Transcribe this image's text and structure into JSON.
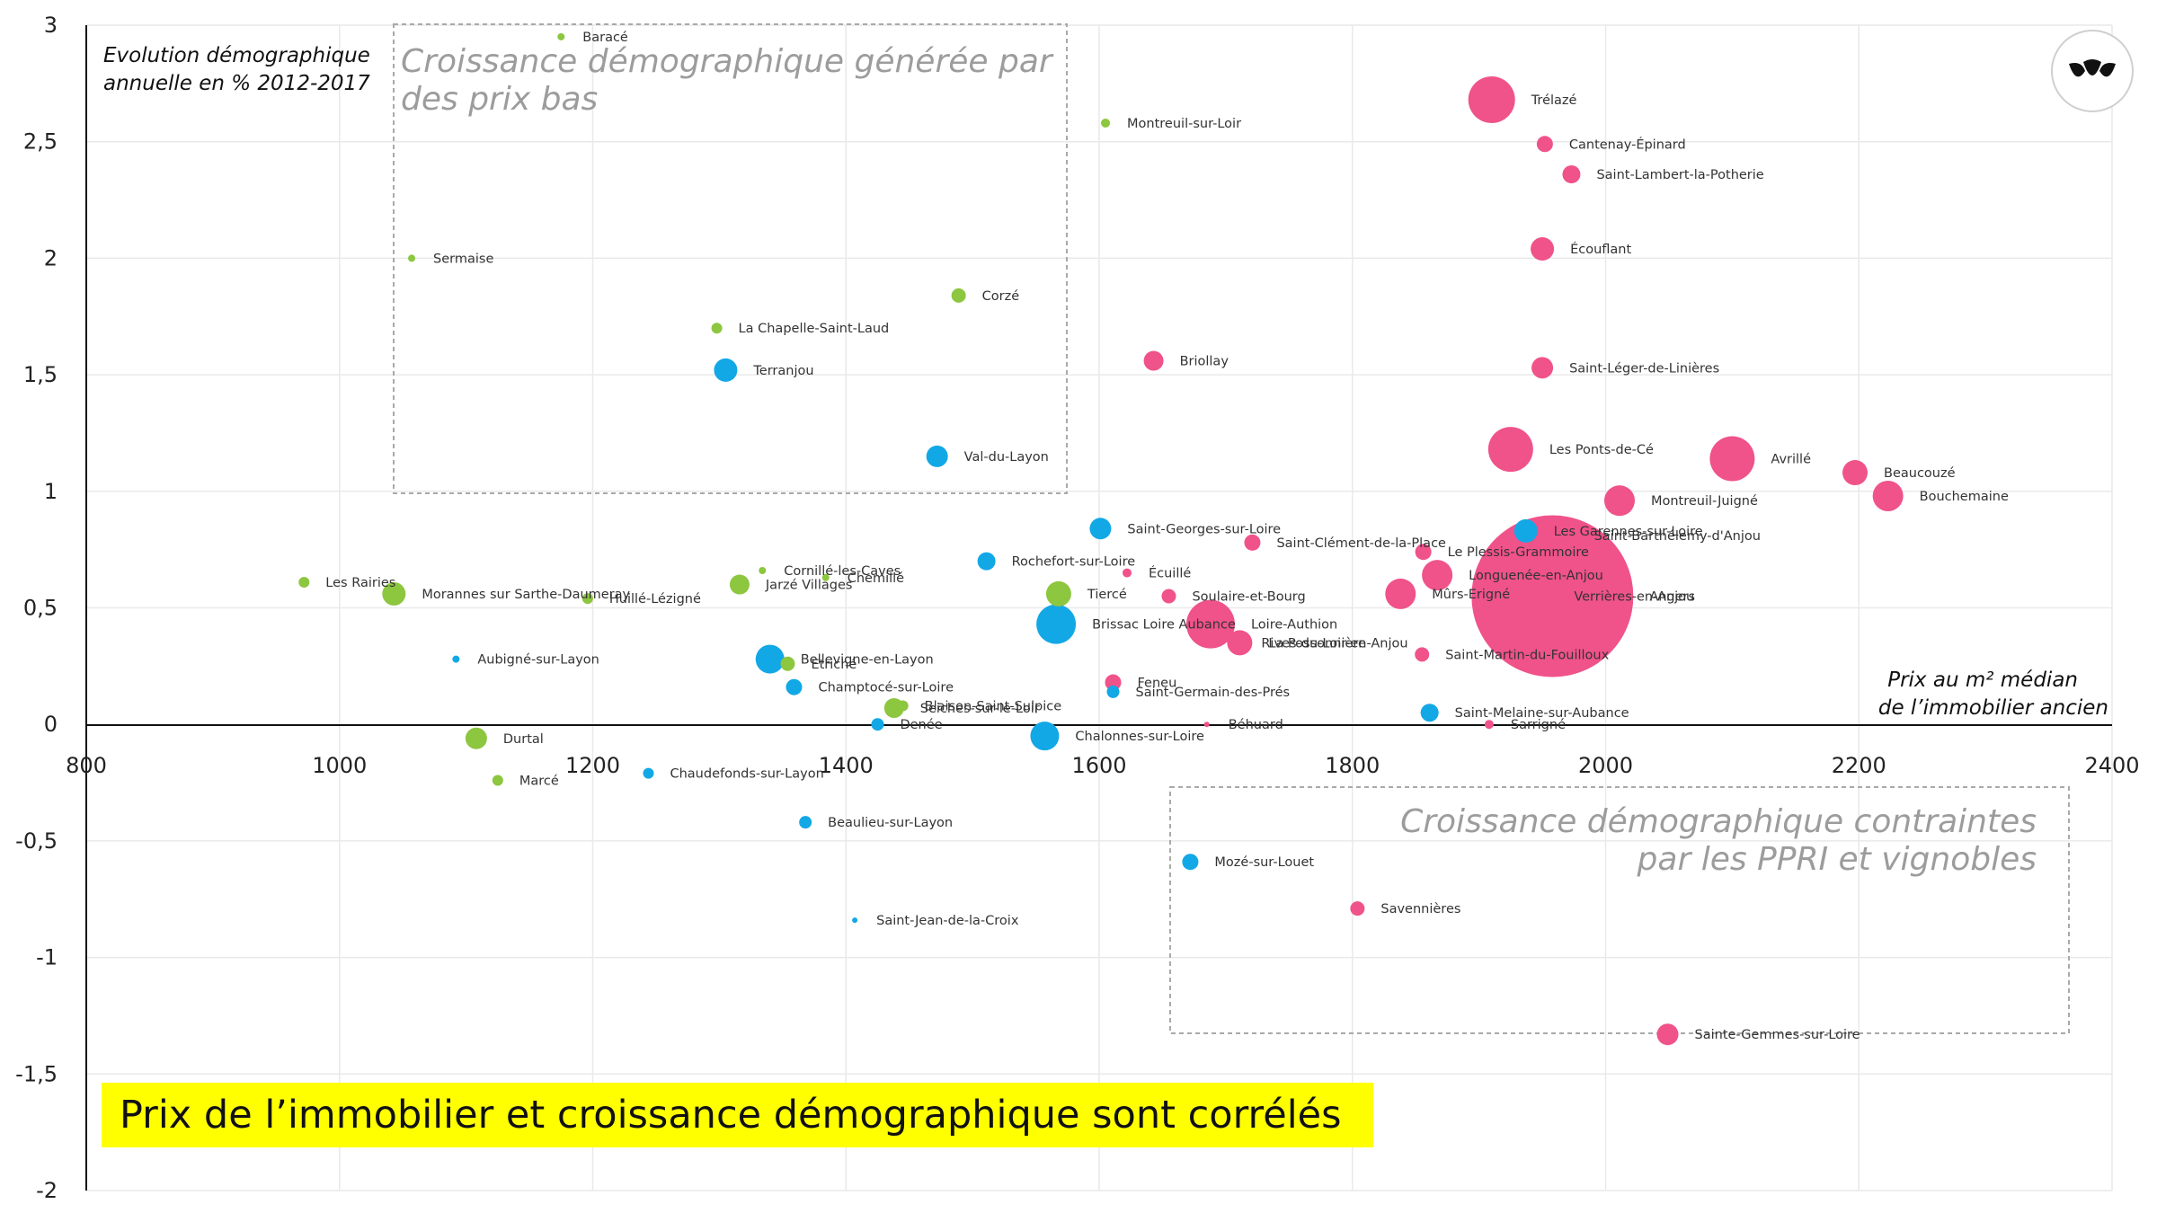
{
  "colors": {
    "green": "#8dc63f",
    "blue": "#12a8e6",
    "pink": "#f0528a",
    "banner": "#ffff00"
  },
  "logo": {
    "icon": "leaf-logo-icon"
  },
  "headline": "Prix de l’immobilier et croissance démographique sont corrélés",
  "zones": {
    "top_left": [
      "Croissance démographique générée par",
      "des prix bas"
    ],
    "bottom_right": [
      "Croissance démographique contraintes",
      "par les PPRI et vignobles"
    ]
  },
  "chart_data": {
    "type": "scatter",
    "title": "",
    "xlabel": [
      "Prix au m² médian",
      "de l’immobilier ancien"
    ],
    "ylabel": [
      "Evolution démographique",
      "annuelle en % 2012-2017"
    ],
    "xlim": [
      800,
      2400
    ],
    "ylim": [
      -2,
      3
    ],
    "xticks": [
      "800",
      "1000",
      "1200",
      "1400",
      "1600",
      "1800",
      "2000",
      "2200",
      "2400"
    ],
    "yticks": [
      "3",
      "2,5",
      "2",
      "1,5",
      "1",
      "0,5",
      "0",
      "-0,5",
      "-1",
      "-1,5",
      "-2"
    ],
    "grid": true,
    "bubble_size_note": "bubble area varies by commune",
    "points": [
      {
        "name": "Baracé",
        "x": 1175,
        "y": 2.95,
        "r": 4,
        "c": "green"
      },
      {
        "name": "Montreuil-sur-Loir",
        "x": 1605,
        "y": 2.58,
        "r": 5,
        "c": "green"
      },
      {
        "name": "Sermaise",
        "x": 1057,
        "y": 2.0,
        "r": 4,
        "c": "green"
      },
      {
        "name": "Corzé",
        "x": 1489,
        "y": 1.84,
        "r": 8,
        "c": "green"
      },
      {
        "name": "La Chapelle-Saint-Laud",
        "x": 1298,
        "y": 1.7,
        "r": 6,
        "c": "green"
      },
      {
        "name": "Terranjou",
        "x": 1305,
        "y": 1.52,
        "r": 13,
        "c": "blue"
      },
      {
        "name": "Val-du-Layon",
        "x": 1472,
        "y": 1.15,
        "r": 12,
        "c": "blue"
      },
      {
        "name": "Trélazé",
        "x": 1910,
        "y": 2.68,
        "r": 26,
        "c": "pink"
      },
      {
        "name": "Cantenay-Épinard",
        "x": 1952,
        "y": 2.49,
        "r": 9,
        "c": "pink"
      },
      {
        "name": "Saint-Lambert-la-Potherie",
        "x": 1973,
        "y": 2.36,
        "r": 10,
        "c": "pink"
      },
      {
        "name": "Écouflant",
        "x": 1950,
        "y": 2.04,
        "r": 13,
        "c": "pink"
      },
      {
        "name": "Briollay",
        "x": 1643,
        "y": 1.56,
        "r": 11,
        "c": "pink"
      },
      {
        "name": "Saint-Léger-de-Linières",
        "x": 1950,
        "y": 1.53,
        "r": 12,
        "c": "pink"
      },
      {
        "name": "Les Ponts-de-Cé",
        "x": 1925,
        "y": 1.18,
        "r": 25,
        "c": "pink"
      },
      {
        "name": "Avrillé",
        "x": 2100,
        "y": 1.14,
        "r": 25,
        "c": "pink"
      },
      {
        "name": "Beaucouzé",
        "x": 2197,
        "y": 1.08,
        "r": 14,
        "c": "pink"
      },
      {
        "name": "Bouchemaine",
        "x": 2223,
        "y": 0.98,
        "r": 17,
        "c": "pink"
      },
      {
        "name": "Montreuil-Juigné",
        "x": 2011,
        "y": 0.96,
        "r": 17,
        "c": "pink"
      },
      {
        "name": "Saint-Georges-sur-Loire",
        "x": 1601,
        "y": 0.84,
        "r": 12,
        "c": "blue"
      },
      {
        "name": "Saint-Clément-de-la-Place",
        "x": 1721,
        "y": 0.78,
        "r": 9,
        "c": "pink"
      },
      {
        "name": "Les Garennes-sur-Loire",
        "x": 1937,
        "y": 0.83,
        "r": 13,
        "c": "blue"
      },
      {
        "name": "Saint-Barthélemy-d'Anjou",
        "x": 1966,
        "y": 0.81,
        "r": 17,
        "c": "pink"
      },
      {
        "name": "Le Plessis-Grammoire",
        "x": 1856,
        "y": 0.74,
        "r": 9,
        "c": "pink"
      },
      {
        "name": "Rochefort-sur-Loire",
        "x": 1511,
        "y": 0.7,
        "r": 10,
        "c": "blue"
      },
      {
        "name": "Écuillé",
        "x": 1622,
        "y": 0.65,
        "r": 5,
        "c": "pink"
      },
      {
        "name": "Longuenée-en-Anjou",
        "x": 1867,
        "y": 0.64,
        "r": 17,
        "c": "pink"
      },
      {
        "name": "Cornillé-les-Caves",
        "x": 1334,
        "y": 0.66,
        "r": 4,
        "c": "green"
      },
      {
        "name": "Chemillé",
        "x": 1384,
        "y": 0.63,
        "r": 4,
        "c": "green"
      },
      {
        "name": "Jarzé Villages",
        "x": 1316,
        "y": 0.6,
        "r": 11,
        "c": "green"
      },
      {
        "name": "Les Rairies",
        "x": 972,
        "y": 0.61,
        "r": 6,
        "c": "green"
      },
      {
        "name": "Morannes sur Sarthe-Daumeray",
        "x": 1043,
        "y": 0.56,
        "r": 13,
        "c": "green"
      },
      {
        "name": "Huillé-Lézigné",
        "x": 1196,
        "y": 0.54,
        "r": 6,
        "c": "green"
      },
      {
        "name": "Tiercé",
        "x": 1568,
        "y": 0.56,
        "r": 14,
        "c": "green"
      },
      {
        "name": "Soulaire-et-Bourg",
        "x": 1655,
        "y": 0.55,
        "r": 8,
        "c": "pink"
      },
      {
        "name": "Mûrs-Erigné",
        "x": 1838,
        "y": 0.56,
        "r": 17,
        "c": "pink"
      },
      {
        "name": "Angers",
        "x": 1958,
        "y": 0.55,
        "r": 90,
        "c": "pink"
      },
      {
        "name": "Verrières-en-Anjou",
        "x": 1958,
        "y": 0.55,
        "r": 0,
        "c": "pink"
      },
      {
        "name": "Brissac Loire Aubance",
        "x": 1566,
        "y": 0.43,
        "r": 22,
        "c": "blue"
      },
      {
        "name": "Loire-Authion",
        "x": 1688,
        "y": 0.43,
        "r": 27,
        "c": "pink"
      },
      {
        "name": "La Possonnière",
        "x": 1711,
        "y": 0.35,
        "r": 14,
        "c": "pink"
      },
      {
        "name": "Rives-du-Loir-en-Anjou",
        "x": 1711,
        "y": 0.35,
        "r": 0,
        "c": "pink"
      },
      {
        "name": "Aubigné-sur-Layon",
        "x": 1092,
        "y": 0.28,
        "r": 4,
        "c": "blue"
      },
      {
        "name": "Bellevigne-en-Layon",
        "x": 1340,
        "y": 0.28,
        "r": 16,
        "c": "blue"
      },
      {
        "name": "Etriché",
        "x": 1354,
        "y": 0.26,
        "r": 8,
        "c": "green"
      },
      {
        "name": "Saint-Martin-du-Fouilloux",
        "x": 1855,
        "y": 0.3,
        "r": 8,
        "c": "pink"
      },
      {
        "name": "Champtocé-sur-Loire",
        "x": 1359,
        "y": 0.16,
        "r": 9,
        "c": "blue"
      },
      {
        "name": "Feneu",
        "x": 1611,
        "y": 0.18,
        "r": 9,
        "c": "pink"
      },
      {
        "name": "Saint-Germain-des-Prés",
        "x": 1611,
        "y": 0.14,
        "r": 7,
        "c": "blue"
      },
      {
        "name": "Blaison-Saint-Sulpice",
        "x": 1445,
        "y": 0.08,
        "r": 6,
        "c": "green"
      },
      {
        "name": "Seiches-sur-le-Loir",
        "x": 1438,
        "y": 0.07,
        "r": 11,
        "c": "green"
      },
      {
        "name": "Saint-Melaine-sur-Aubance",
        "x": 1861,
        "y": 0.05,
        "r": 10,
        "c": "blue"
      },
      {
        "name": "Denée",
        "x": 1425,
        "y": 0.0,
        "r": 7,
        "c": "blue"
      },
      {
        "name": "Béhuard",
        "x": 1685,
        "y": 0.0,
        "r": 3,
        "c": "pink"
      },
      {
        "name": "Sarrigné",
        "x": 1908,
        "y": 0.0,
        "r": 5,
        "c": "pink"
      },
      {
        "name": "Chalonnes-sur-Loire",
        "x": 1557,
        "y": -0.05,
        "r": 16,
        "c": "blue"
      },
      {
        "name": "Durtal",
        "x": 1108,
        "y": -0.06,
        "r": 12,
        "c": "green"
      },
      {
        "name": "Marcé",
        "x": 1125,
        "y": -0.24,
        "r": 6,
        "c": "green"
      },
      {
        "name": "Chaudefonds-sur-Layon",
        "x": 1244,
        "y": -0.21,
        "r": 6,
        "c": "blue"
      },
      {
        "name": "Beaulieu-sur-Layon",
        "x": 1368,
        "y": -0.42,
        "r": 7,
        "c": "blue"
      },
      {
        "name": "Mozé-sur-Louet",
        "x": 1672,
        "y": -0.59,
        "r": 9,
        "c": "blue"
      },
      {
        "name": "Savennières",
        "x": 1804,
        "y": -0.79,
        "r": 8,
        "c": "pink"
      },
      {
        "name": "Saint-Jean-de-la-Croix",
        "x": 1407,
        "y": -0.84,
        "r": 3,
        "c": "blue"
      },
      {
        "name": "Sainte-Gemmes-sur-Loire",
        "x": 2049,
        "y": -1.33,
        "r": 12,
        "c": "pink"
      }
    ]
  }
}
